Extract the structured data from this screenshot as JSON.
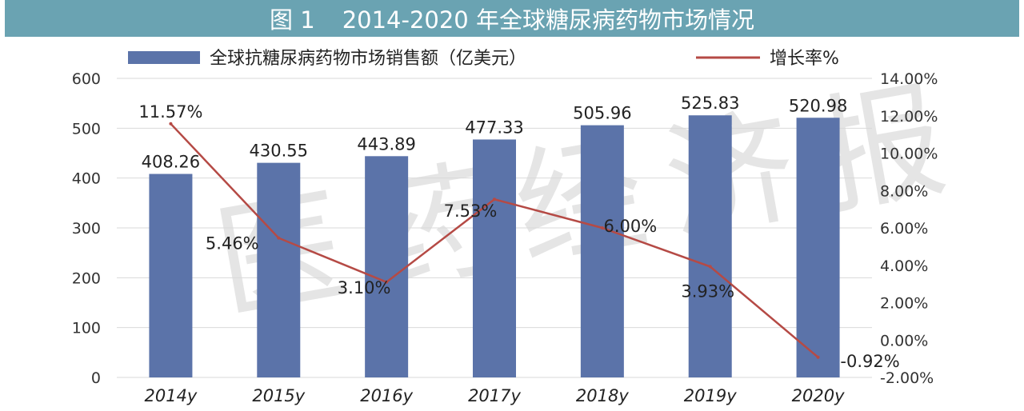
{
  "header": {
    "figure_no": "图 1",
    "title": "2014-2020 年全球糖尿病药物市场情况"
  },
  "watermark": {
    "text": "医药经济报"
  },
  "colors": {
    "bar": "#5b73a9",
    "line": "#b54a45",
    "banner": "#6aa3b2"
  },
  "chart_data": {
    "type": "bar",
    "title": "2014-2020 年全球糖尿病药物市场情况",
    "categories": [
      "2014y",
      "2015y",
      "2016y",
      "2017y",
      "2018y",
      "2019y",
      "2020y"
    ],
    "series": [
      {
        "name": "全球抗糖尿病药物市场销售额（亿美元）",
        "type": "bar",
        "axis": "left",
        "values": [
          408.26,
          430.55,
          443.89,
          477.33,
          505.96,
          525.83,
          520.98
        ],
        "labels": [
          "408.26",
          "430.55",
          "443.89",
          "477.33",
          "505.96",
          "525.83",
          "520.98"
        ]
      },
      {
        "name": "增长率%",
        "type": "line",
        "axis": "right",
        "values": [
          11.57,
          5.46,
          3.1,
          7.53,
          6.0,
          3.93,
          -0.92
        ],
        "labels": [
          "11.57%",
          "5.46%",
          "3.10%",
          "7.53%",
          "6.00%",
          "3.93%",
          "-0.92%"
        ]
      }
    ],
    "y_left": {
      "min": 0,
      "max": 600,
      "ticks": [
        "0",
        "100",
        "200",
        "300",
        "400",
        "500",
        "600"
      ]
    },
    "y_right": {
      "min": -2,
      "max": 14,
      "ticks": [
        "-2.00%",
        "0.00%",
        "2.00%",
        "4.00%",
        "6.00%",
        "8.00%",
        "10.00%",
        "12.00%",
        "14.00%"
      ]
    },
    "legend": {
      "position": "top",
      "bar_label": "全球抗糖尿病药物市场销售额（亿美元）",
      "line_label": "增长率%"
    },
    "grid": true
  }
}
